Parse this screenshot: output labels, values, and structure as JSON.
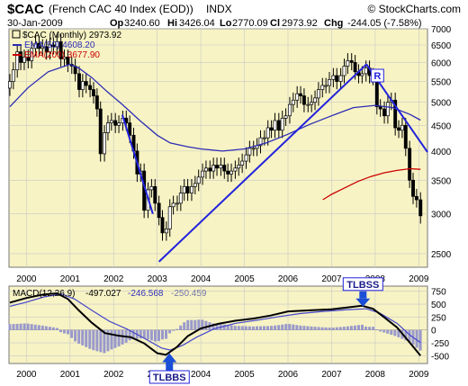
{
  "header": {
    "symbol": "$CAC",
    "name": "(French CAC 40 Index (EOD))",
    "exchange": "INDX",
    "brand": "© StockCharts.com",
    "date": "30-Jan-2009",
    "op_label": "Op",
    "op_value": "3240.60",
    "hi_label": "Hi",
    "hi_value": "3426.04",
    "lo_label": "Lo",
    "lo_value": "2770.09",
    "cl_label": "Cl",
    "cl_value": "2973.92",
    "chg_label": "Chg",
    "chg_value": "-244.05 (-7.58%)"
  },
  "colors": {
    "panel_bg": "#f7f3c4",
    "grid": "#c8c8c8",
    "ema50": "#2b2bb5",
    "ema200": "#cc0000",
    "trend": "#2222dd",
    "macd_line": "#000000",
    "signal_line": "#4444cc",
    "histogram": "#9999cc",
    "arrow": "#1a4fd6"
  },
  "chart_data": [
    {
      "type": "line",
      "id": "price",
      "legend": [
        {
          "name": "$CAC (Monthly) 2973.92",
          "marker": "candle"
        },
        {
          "name": "EMA(50) 4608.20",
          "color": "#2b2bb5"
        },
        {
          "name": "EMA(200) 3677.90",
          "color": "#cc0000"
        }
      ],
      "yticks": [
        "2500",
        "3000",
        "3500",
        "4000",
        "4500",
        "5000",
        "5500",
        "6000",
        "6500",
        "7000"
      ],
      "ylim": [
        2350,
        7000
      ],
      "xlim": [
        1999.6,
        2009.2
      ],
      "xticks": [
        "2000",
        "2001",
        "2002",
        "2003",
        "2004",
        "2005",
        "2006",
        "2007",
        "2008",
        "2009"
      ],
      "candles": [
        [
          1999.62,
          5500
        ],
        [
          1999.7,
          5800
        ],
        [
          1999.79,
          6300
        ],
        [
          1999.87,
          6000
        ],
        [
          1999.95,
          6150
        ],
        [
          2000.04,
          6050
        ],
        [
          2000.12,
          6400
        ],
        [
          2000.21,
          6550
        ],
        [
          2000.29,
          6400
        ],
        [
          2000.37,
          6450
        ],
        [
          2000.46,
          6300
        ],
        [
          2000.54,
          6500
        ],
        [
          2000.62,
          6450
        ],
        [
          2000.7,
          6600
        ],
        [
          2000.79,
          6100
        ],
        [
          2000.87,
          6150
        ],
        [
          2000.95,
          5950
        ],
        [
          2001.04,
          5900
        ],
        [
          2001.12,
          5700
        ],
        [
          2001.21,
          5300
        ],
        [
          2001.29,
          5500
        ],
        [
          2001.37,
          5400
        ],
        [
          2001.46,
          5300
        ],
        [
          2001.54,
          5150
        ],
        [
          2001.62,
          4850
        ],
        [
          2001.7,
          3950
        ],
        [
          2001.79,
          4350
        ],
        [
          2001.87,
          4550
        ],
        [
          2001.95,
          4600
        ],
        [
          2002.04,
          4500
        ],
        [
          2002.12,
          4550
        ],
        [
          2002.21,
          4650
        ],
        [
          2002.29,
          4550
        ],
        [
          2002.37,
          4300
        ],
        [
          2002.46,
          4000
        ],
        [
          2002.54,
          3600
        ],
        [
          2002.62,
          3650
        ],
        [
          2002.7,
          3050
        ],
        [
          2002.79,
          3350
        ],
        [
          2002.87,
          3400
        ],
        [
          2002.95,
          3150
        ],
        [
          2003.04,
          2950
        ],
        [
          2003.12,
          2750
        ],
        [
          2003.21,
          2800
        ],
        [
          2003.29,
          3100
        ],
        [
          2003.37,
          3150
        ],
        [
          2003.46,
          3150
        ],
        [
          2003.54,
          3300
        ],
        [
          2003.62,
          3400
        ],
        [
          2003.7,
          3300
        ],
        [
          2003.79,
          3400
        ],
        [
          2003.87,
          3450
        ],
        [
          2003.95,
          3550
        ],
        [
          2004.04,
          3650
        ],
        [
          2004.12,
          3700
        ],
        [
          2004.21,
          3650
        ],
        [
          2004.29,
          3750
        ],
        [
          2004.37,
          3700
        ],
        [
          2004.46,
          3750
        ],
        [
          2004.54,
          3650
        ],
        [
          2004.62,
          3600
        ],
        [
          2004.7,
          3650
        ],
        [
          2004.79,
          3700
        ],
        [
          2004.87,
          3750
        ],
        [
          2004.95,
          3820
        ],
        [
          2005.04,
          3930
        ],
        [
          2005.12,
          4050
        ],
        [
          2005.21,
          4050
        ],
        [
          2005.29,
          4100
        ],
        [
          2005.37,
          4250
        ],
        [
          2005.46,
          4250
        ],
        [
          2005.54,
          4450
        ],
        [
          2005.62,
          4400
        ],
        [
          2005.7,
          4600
        ],
        [
          2005.79,
          4400
        ],
        [
          2005.87,
          4650
        ],
        [
          2005.95,
          4700
        ],
        [
          2006.04,
          4950
        ],
        [
          2006.12,
          5050
        ],
        [
          2006.21,
          5200
        ],
        [
          2006.29,
          5150
        ],
        [
          2006.37,
          4950
        ],
        [
          2006.46,
          4950
        ],
        [
          2006.54,
          5000
        ],
        [
          2006.62,
          5100
        ],
        [
          2006.7,
          5300
        ],
        [
          2006.79,
          5400
        ],
        [
          2006.87,
          5400
        ],
        [
          2006.95,
          5550
        ],
        [
          2007.04,
          5650
        ],
        [
          2007.12,
          5500
        ],
        [
          2007.21,
          5650
        ],
        [
          2007.29,
          5900
        ],
        [
          2007.37,
          6050
        ],
        [
          2007.46,
          6000
        ],
        [
          2007.54,
          5750
        ],
        [
          2007.62,
          5650
        ],
        [
          2007.7,
          5700
        ],
        [
          2007.79,
          5850
        ],
        [
          2007.87,
          5650
        ],
        [
          2007.95,
          5600
        ],
        [
          2008.04,
          4900
        ],
        [
          2008.12,
          4850
        ],
        [
          2008.21,
          4700
        ],
        [
          2008.29,
          5000
        ],
        [
          2008.37,
          5050
        ],
        [
          2008.46,
          4450
        ],
        [
          2008.54,
          4400
        ],
        [
          2008.62,
          4500
        ],
        [
          2008.7,
          4050
        ],
        [
          2008.79,
          3500
        ],
        [
          2008.87,
          3250
        ],
        [
          2008.95,
          3200
        ],
        [
          2009.04,
          2974
        ]
      ],
      "ema50": [
        [
          1999.62,
          4900
        ],
        [
          2000.04,
          5350
        ],
        [
          2000.5,
          5750
        ],
        [
          2001.0,
          5950
        ],
        [
          2001.2,
          5850
        ],
        [
          2001.5,
          5600
        ],
        [
          2001.85,
          5250
        ],
        [
          2002.2,
          4950
        ],
        [
          2002.6,
          4600
        ],
        [
          2003.0,
          4300
        ],
        [
          2003.3,
          4150
        ],
        [
          2003.7,
          4080
        ],
        [
          2004.0,
          4040
        ],
        [
          2004.5,
          4000
        ],
        [
          2005.0,
          4040
        ],
        [
          2005.5,
          4150
        ],
        [
          2006.0,
          4320
        ],
        [
          2006.5,
          4520
        ],
        [
          2007.0,
          4700
        ],
        [
          2007.5,
          4880
        ],
        [
          2008.0,
          4930
        ],
        [
          2008.4,
          4880
        ],
        [
          2008.8,
          4730
        ],
        [
          2009.04,
          4608
        ]
      ],
      "ema200": [
        [
          2006.8,
          3200
        ],
        [
          2007.0,
          3280
        ],
        [
          2007.3,
          3380
        ],
        [
          2007.6,
          3480
        ],
        [
          2007.9,
          3560
        ],
        [
          2008.2,
          3620
        ],
        [
          2008.5,
          3660
        ],
        [
          2008.8,
          3690
        ],
        [
          2009.04,
          3678
        ]
      ],
      "trendlines": [
        [
          [
            2002.2,
            4720
          ],
          [
            2002.9,
            3000
          ]
        ],
        [
          [
            2003.04,
            2410
          ],
          [
            2007.8,
            5950
          ]
        ],
        [
          [
            2007.8,
            5950
          ],
          [
            2009.2,
            3980
          ]
        ]
      ],
      "annotations": [
        {
          "label": "R",
          "x": 2008.05,
          "y": 5650
        }
      ]
    },
    {
      "type": "line",
      "id": "macd",
      "legend": [
        {
          "name": "MACD(12,26,9)",
          "value": "-497.027"
        },
        {
          "name": "",
          "value": "-246.568"
        },
        {
          "name": "",
          "value": "-250.459"
        }
      ],
      "yticks": [
        "750",
        "500",
        "250",
        "0",
        "-250",
        "-500"
      ],
      "ylim": [
        -650,
        850
      ],
      "xlim": [
        1999.6,
        2009.2
      ],
      "xticks": [
        "2000",
        "2001",
        "2002",
        "2003",
        "2004",
        "2005",
        "2006",
        "2007",
        "2008",
        "2009"
      ],
      "macd": [
        [
          1999.62,
          530
        ],
        [
          2000.0,
          620
        ],
        [
          2000.4,
          690
        ],
        [
          2000.7,
          710
        ],
        [
          2000.95,
          600
        ],
        [
          2001.2,
          380
        ],
        [
          2001.5,
          140
        ],
        [
          2001.8,
          -60
        ],
        [
          2002.1,
          -110
        ],
        [
          2002.4,
          -140
        ],
        [
          2002.7,
          -260
        ],
        [
          2003.0,
          -450
        ],
        [
          2003.2,
          -480
        ],
        [
          2003.45,
          -330
        ],
        [
          2003.7,
          -120
        ],
        [
          2004.0,
          30
        ],
        [
          2004.4,
          120
        ],
        [
          2004.8,
          180
        ],
        [
          2005.2,
          220
        ],
        [
          2005.6,
          280
        ],
        [
          2006.0,
          360
        ],
        [
          2006.5,
          380
        ],
        [
          2007.0,
          400
        ],
        [
          2007.4,
          440
        ],
        [
          2007.7,
          470
        ],
        [
          2007.95,
          410
        ],
        [
          2008.2,
          250
        ],
        [
          2008.5,
          50
        ],
        [
          2008.8,
          -250
        ],
        [
          2009.04,
          -497
        ]
      ],
      "signal": [
        [
          1999.62,
          460
        ],
        [
          2000.0,
          540
        ],
        [
          2000.4,
          640
        ],
        [
          2000.8,
          700
        ],
        [
          2001.1,
          600
        ],
        [
          2001.5,
          380
        ],
        [
          2001.9,
          170
        ],
        [
          2002.3,
          20
        ],
        [
          2002.7,
          -160
        ],
        [
          2003.1,
          -350
        ],
        [
          2003.3,
          -390
        ],
        [
          2003.6,
          -290
        ],
        [
          2003.9,
          -140
        ],
        [
          2004.3,
          20
        ],
        [
          2004.8,
          130
        ],
        [
          2005.3,
          190
        ],
        [
          2005.8,
          260
        ],
        [
          2006.3,
          320
        ],
        [
          2006.8,
          360
        ],
        [
          2007.3,
          390
        ],
        [
          2007.8,
          410
        ],
        [
          2008.1,
          330
        ],
        [
          2008.5,
          130
        ],
        [
          2008.8,
          -100
        ],
        [
          2009.04,
          -246
        ]
      ],
      "arrows": [
        {
          "label": "TLBSS",
          "x": 2007.72,
          "y": 470,
          "position": "above"
        },
        {
          "label": "TLBBS",
          "x": 2003.28,
          "y": -470,
          "position": "below"
        }
      ]
    }
  ]
}
